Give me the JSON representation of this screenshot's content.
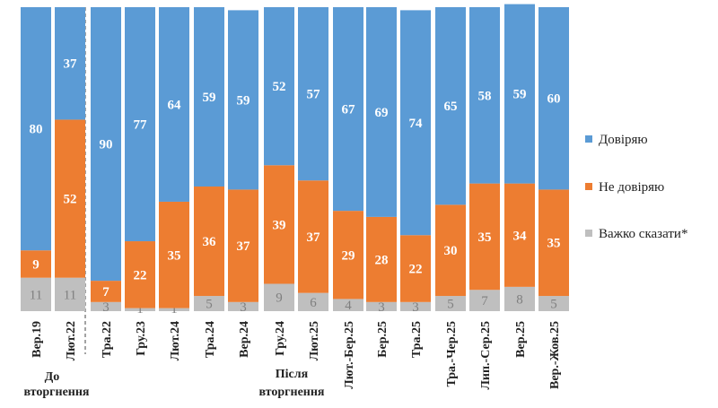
{
  "chart_data": {
    "type": "bar",
    "stacked": true,
    "categories": [
      "Вер.19",
      "Лют.22",
      "Тра.22",
      "Гру.23",
      "Лют.24",
      "Тра.24",
      "Вер.24",
      "Гру.24",
      "Лют.25",
      "Лют.-Бер.25",
      "Бер.25",
      "Тра.25",
      "Тра.-Чер.25",
      "Лип.-Сер.25",
      "Вер.25",
      "Вер.-Жов.25"
    ],
    "series": [
      {
        "name": "Довіряю",
        "color": "#5b9bd5",
        "values": [
          80,
          37,
          90,
          77,
          64,
          59,
          59,
          52,
          57,
          67,
          69,
          74,
          65,
          58,
          59,
          60
        ]
      },
      {
        "name": "Не довіряю",
        "color": "#ed7d31",
        "values": [
          9,
          52,
          7,
          22,
          35,
          36,
          37,
          39,
          37,
          29,
          28,
          22,
          30,
          35,
          34,
          35
        ]
      },
      {
        "name": "Важко сказати*",
        "color": "#bfbfbf",
        "values": [
          11,
          11,
          3,
          1,
          1,
          5,
          3,
          9,
          6,
          4,
          3,
          3,
          5,
          7,
          8,
          5
        ]
      }
    ],
    "ylim": [
      0,
      100
    ],
    "grid": false,
    "legend": "right",
    "group_labels": [
      {
        "text_line1": "До",
        "text_line2": "вторгнення"
      },
      {
        "text_line1": "Після",
        "text_line2": "вторгнення"
      }
    ]
  }
}
